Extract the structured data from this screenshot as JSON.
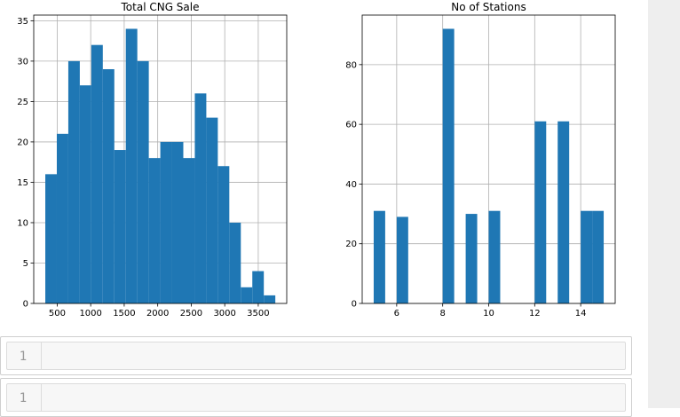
{
  "chart_data": [
    {
      "type": "bar",
      "title": "Total CNG Sale",
      "xlabel": "",
      "ylabel": "",
      "bin_edges": [
        322.6,
        494.2,
        665.8,
        837.4,
        1009.0,
        1180.6,
        1352.2,
        1523.8,
        1695.4,
        1867.0,
        2038.6,
        2210.2,
        2381.8,
        2553.4,
        2725.0,
        2896.6,
        3068.2,
        3239.8,
        3411.4,
        3583.0,
        3754.6
      ],
      "values": [
        16,
        21,
        30,
        27,
        32,
        29,
        19,
        34,
        30,
        18,
        20,
        20,
        18,
        26,
        23,
        17,
        10,
        2,
        4,
        1
      ],
      "xticks": [
        "500",
        "1000",
        "1500",
        "2000",
        "2500",
        "3000",
        "3500"
      ],
      "xtick_values": [
        500,
        1000,
        1500,
        2000,
        2500,
        3000,
        3500
      ],
      "yticks": [
        "0",
        "5",
        "10",
        "15",
        "20",
        "25",
        "30",
        "35"
      ],
      "ytick_values": [
        0,
        5,
        10,
        15,
        20,
        25,
        30,
        35
      ],
      "xlim": [
        150,
        3925
      ],
      "ylim": [
        0,
        35.7
      ],
      "grid": true,
      "color": "#1f77b4"
    },
    {
      "type": "bar",
      "title": "No of Stations",
      "xlabel": "",
      "ylabel": "",
      "bin_edges": [
        5.0,
        5.5,
        6.0,
        6.5,
        7.0,
        7.5,
        8.0,
        8.5,
        9.0,
        9.5,
        10.0,
        10.5,
        11.0,
        11.5,
        12.0,
        12.5,
        13.0,
        13.5,
        14.0,
        14.5,
        15.0
      ],
      "values": [
        31,
        0,
        29,
        0,
        0,
        0,
        92,
        0,
        30,
        0,
        31,
        0,
        0,
        0,
        61,
        0,
        61,
        0,
        31,
        31
      ],
      "xticks": [
        "6",
        "8",
        "10",
        "12",
        "14"
      ],
      "xtick_values": [
        6,
        8,
        10,
        12,
        14
      ],
      "yticks": [
        "0",
        "20",
        "40",
        "60",
        "80"
      ],
      "ytick_values": [
        0,
        20,
        40,
        60,
        80
      ],
      "xlim": [
        4.5,
        15.5
      ],
      "ylim": [
        0,
        96.6
      ],
      "grid": true,
      "color": "#1f77b4"
    }
  ],
  "cells": [
    {
      "line_number": "1",
      "content": ""
    },
    {
      "line_number": "1",
      "content": ""
    }
  ]
}
